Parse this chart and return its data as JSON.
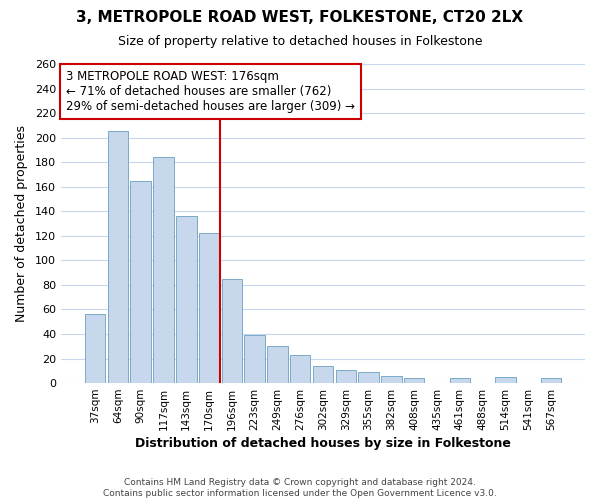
{
  "title": "3, METROPOLE ROAD WEST, FOLKESTONE, CT20 2LX",
  "subtitle": "Size of property relative to detached houses in Folkestone",
  "xlabel": "Distribution of detached houses by size in Folkestone",
  "ylabel": "Number of detached properties",
  "footer_line1": "Contains HM Land Registry data © Crown copyright and database right 2024.",
  "footer_line2": "Contains public sector information licensed under the Open Government Licence v3.0.",
  "categories": [
    "37sqm",
    "64sqm",
    "90sqm",
    "117sqm",
    "143sqm",
    "170sqm",
    "196sqm",
    "223sqm",
    "249sqm",
    "276sqm",
    "302sqm",
    "329sqm",
    "355sqm",
    "382sqm",
    "408sqm",
    "435sqm",
    "461sqm",
    "488sqm",
    "514sqm",
    "541sqm",
    "567sqm"
  ],
  "values": [
    56,
    205,
    165,
    184,
    136,
    122,
    85,
    39,
    30,
    23,
    14,
    11,
    9,
    6,
    4,
    0,
    4,
    0,
    5,
    0,
    4
  ],
  "bar_color": "#c8d8ec",
  "bar_edge_color": "#7aaac8",
  "highlight_index": 5,
  "highlight_line_color": "#cc0000",
  "annotation_title": "3 METROPOLE ROAD WEST: 176sqm",
  "annotation_line1": "← 71% of detached houses are smaller (762)",
  "annotation_line2": "29% of semi-detached houses are larger (309) →",
  "annotation_box_edge_color": "#cc0000",
  "ylim": [
    0,
    260
  ],
  "yticks": [
    0,
    20,
    40,
    60,
    80,
    100,
    120,
    140,
    160,
    180,
    200,
    220,
    240,
    260
  ],
  "background_color": "#ffffff",
  "grid_color": "#c8d8ec",
  "figure_bg": "#ffffff"
}
